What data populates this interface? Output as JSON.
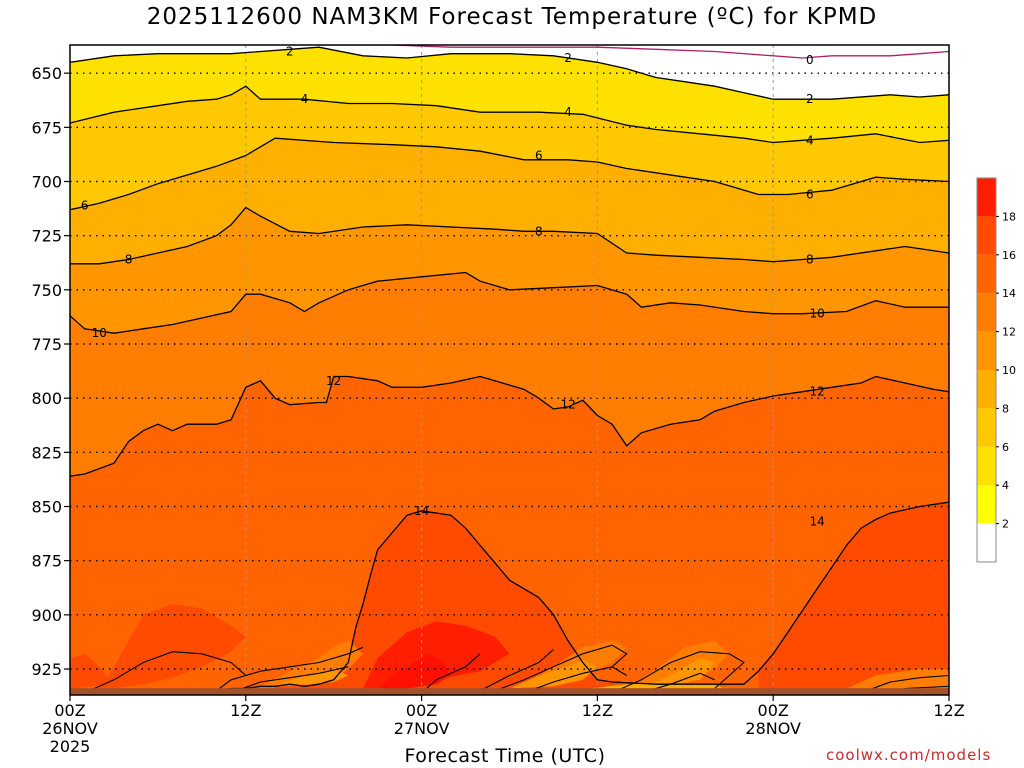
{
  "title": "2025112600 NAM3KM Forecast Temperature (ºC) for KPMD",
  "credit": "coolwx.com/models",
  "colors": {
    "c0": "#ffffff",
    "c2": "#ffff00",
    "c4": "#ffe100",
    "c6": "#ffc800",
    "c8": "#ffaf00",
    "c10": "#ff9600",
    "c12": "#ff7d00",
    "c14": "#ff6400",
    "c16": "#ff4b00",
    "c18": "#ff1e00",
    "ground": "#a0522d",
    "zero_line": "#b0206a"
  },
  "chart_data": {
    "type": "heatmap",
    "subtype": "time-height contour",
    "title": "2025112600 NAM3KM Forecast Temperature (ºC) for KPMD",
    "xlabel": "Forecast Time (UTC)",
    "ylabel": "",
    "xlim": [
      0,
      60
    ],
    "ylim": [
      637,
      937
    ],
    "y_inverted": true,
    "x_ticks": [
      {
        "hour": 0,
        "label": "00Z",
        "sub1": "26NOV",
        "sub2": "2025"
      },
      {
        "hour": 12,
        "label": "12Z",
        "sub1": "",
        "sub2": ""
      },
      {
        "hour": 24,
        "label": "00Z",
        "sub1": "27NOV",
        "sub2": ""
      },
      {
        "hour": 36,
        "label": "12Z",
        "sub1": "",
        "sub2": ""
      },
      {
        "hour": 48,
        "label": "00Z",
        "sub1": "28NOV",
        "sub2": ""
      },
      {
        "hour": 60,
        "label": "12Z",
        "sub1": "",
        "sub2": ""
      }
    ],
    "y_ticks": [
      650,
      675,
      700,
      725,
      750,
      775,
      800,
      825,
      850,
      875,
      900,
      925
    ],
    "surface_pressure": 932,
    "colorbar": {
      "levels": [
        2,
        4,
        6,
        8,
        10,
        12,
        14,
        16,
        18
      ],
      "colors": [
        "#ffffff",
        "#ffff00",
        "#ffe100",
        "#ffc800",
        "#ffaf00",
        "#ff9600",
        "#ff7d00",
        "#ff6400",
        "#ff4b00",
        "#ff1e00"
      ]
    },
    "contours": [
      {
        "level": 0,
        "label": "0",
        "points": [
          [
            17,
            637
          ],
          [
            22,
            637
          ],
          [
            26,
            638
          ],
          [
            30,
            638
          ],
          [
            36,
            638
          ],
          [
            40,
            639
          ],
          [
            44,
            640
          ],
          [
            48,
            642
          ],
          [
            50,
            643
          ],
          [
            52,
            642
          ],
          [
            56,
            642
          ],
          [
            58,
            641
          ],
          [
            60,
            640
          ]
        ],
        "labels_at": [
          [
            50.5,
            644
          ]
        ]
      },
      {
        "level": 2,
        "label": "2",
        "points": [
          [
            0,
            645
          ],
          [
            3,
            642
          ],
          [
            6,
            641
          ],
          [
            8,
            641
          ],
          [
            11,
            641
          ],
          [
            15,
            639
          ],
          [
            17,
            638
          ],
          [
            20,
            642
          ],
          [
            23,
            643
          ],
          [
            26,
            641
          ],
          [
            30,
            641
          ],
          [
            33,
            642
          ],
          [
            36,
            645
          ],
          [
            38,
            648
          ],
          [
            40,
            652
          ],
          [
            42,
            654
          ],
          [
            44,
            656
          ],
          [
            46,
            659
          ],
          [
            48,
            662
          ],
          [
            52,
            662
          ],
          [
            56,
            660
          ],
          [
            58,
            661
          ],
          [
            60,
            660
          ]
        ],
        "labels_at": [
          [
            15,
            640
          ],
          [
            34,
            643
          ],
          [
            50.5,
            662
          ]
        ]
      },
      {
        "level": 4,
        "label": "4",
        "points": [
          [
            0,
            673
          ],
          [
            3,
            668
          ],
          [
            6,
            665
          ],
          [
            8,
            663
          ],
          [
            10,
            662
          ],
          [
            11,
            660
          ],
          [
            12,
            656
          ],
          [
            13,
            662
          ],
          [
            16,
            662
          ],
          [
            19,
            664
          ],
          [
            22,
            664
          ],
          [
            25,
            665
          ],
          [
            28,
            668
          ],
          [
            32,
            668
          ],
          [
            35,
            669
          ],
          [
            38,
            674
          ],
          [
            40,
            676
          ],
          [
            43,
            678
          ],
          [
            46,
            680
          ],
          [
            48,
            682
          ],
          [
            50,
            681
          ],
          [
            52,
            680
          ],
          [
            55,
            678
          ],
          [
            58,
            682
          ],
          [
            60,
            681
          ]
        ],
        "labels_at": [
          [
            16,
            662
          ],
          [
            34,
            668
          ],
          [
            50.5,
            681
          ]
        ]
      },
      {
        "level": 6,
        "label": "6",
        "points": [
          [
            0,
            713
          ],
          [
            2,
            710
          ],
          [
            4,
            706
          ],
          [
            6,
            701
          ],
          [
            8,
            697
          ],
          [
            10,
            693
          ],
          [
            12,
            688
          ],
          [
            13,
            684
          ],
          [
            14,
            680
          ],
          [
            18,
            682
          ],
          [
            22,
            683
          ],
          [
            25,
            684
          ],
          [
            28,
            686
          ],
          [
            31,
            690
          ],
          [
            34,
            690
          ],
          [
            36,
            691
          ],
          [
            38,
            694
          ],
          [
            40,
            696
          ],
          [
            42,
            698
          ],
          [
            44,
            700
          ],
          [
            47,
            706
          ],
          [
            49,
            706
          ],
          [
            52,
            704
          ],
          [
            55,
            698
          ],
          [
            57,
            699
          ],
          [
            60,
            700
          ]
        ],
        "labels_at": [
          [
            1,
            711
          ],
          [
            32,
            688
          ],
          [
            50.5,
            706
          ]
        ]
      },
      {
        "level": 8,
        "label": "8",
        "points": [
          [
            0,
            738
          ],
          [
            2,
            738
          ],
          [
            4,
            736
          ],
          [
            6,
            733
          ],
          [
            8,
            730
          ],
          [
            10,
            725
          ],
          [
            11,
            720
          ],
          [
            12,
            712
          ],
          [
            13,
            716
          ],
          [
            15,
            723
          ],
          [
            17,
            724
          ],
          [
            20,
            721
          ],
          [
            23,
            720
          ],
          [
            26,
            721
          ],
          [
            29,
            722
          ],
          [
            31,
            723
          ],
          [
            33,
            723
          ],
          [
            36,
            724
          ],
          [
            38,
            733
          ],
          [
            40,
            734
          ],
          [
            43,
            735
          ],
          [
            46,
            736
          ],
          [
            48,
            737
          ],
          [
            50,
            736
          ],
          [
            52,
            735
          ],
          [
            55,
            732
          ],
          [
            57,
            730
          ],
          [
            60,
            733
          ]
        ],
        "labels_at": [
          [
            4,
            736
          ],
          [
            32,
            723
          ],
          [
            50.5,
            736
          ]
        ]
      },
      {
        "level": 10,
        "label": "10",
        "points": [
          [
            0,
            762
          ],
          [
            1,
            768
          ],
          [
            3,
            770
          ],
          [
            5,
            768
          ],
          [
            7,
            766
          ],
          [
            9,
            763
          ],
          [
            11,
            760
          ],
          [
            12,
            752
          ],
          [
            13,
            752
          ],
          [
            15,
            756
          ],
          [
            16,
            760
          ],
          [
            17,
            756
          ],
          [
            19,
            750
          ],
          [
            21,
            746
          ],
          [
            24,
            744
          ],
          [
            27,
            742
          ],
          [
            28,
            746
          ],
          [
            30,
            750
          ],
          [
            33,
            749
          ],
          [
            36,
            748
          ],
          [
            38,
            752
          ],
          [
            39,
            758
          ],
          [
            41,
            756
          ],
          [
            43,
            757
          ],
          [
            46,
            760
          ],
          [
            48,
            761
          ],
          [
            50,
            761
          ],
          [
            53,
            760
          ],
          [
            55,
            755
          ],
          [
            57,
            758
          ],
          [
            60,
            758
          ]
        ],
        "labels_at": [
          [
            2,
            770
          ],
          [
            51,
            761
          ]
        ]
      },
      {
        "level": 12,
        "label": "12",
        "points": [
          [
            0,
            836
          ],
          [
            1,
            835
          ],
          [
            3,
            830
          ],
          [
            4,
            820
          ],
          [
            5,
            815
          ],
          [
            6,
            812
          ],
          [
            7,
            815
          ],
          [
            8,
            812
          ],
          [
            10,
            812
          ],
          [
            11,
            810
          ],
          [
            12,
            795
          ],
          [
            13,
            792
          ],
          [
            14,
            800
          ],
          [
            15,
            803
          ],
          [
            17,
            802
          ],
          [
            17.5,
            802
          ],
          [
            18,
            790
          ],
          [
            19,
            790
          ],
          [
            21,
            792
          ],
          [
            22,
            795
          ],
          [
            24,
            795
          ],
          [
            26,
            793
          ],
          [
            28,
            790
          ],
          [
            29,
            792
          ],
          [
            31,
            796
          ],
          [
            32,
            800
          ],
          [
            33,
            805
          ],
          [
            34,
            804
          ],
          [
            35,
            801
          ],
          [
            36,
            808
          ],
          [
            37,
            812
          ],
          [
            38,
            822
          ],
          [
            39,
            816
          ],
          [
            41,
            812
          ],
          [
            43,
            810
          ],
          [
            44,
            806
          ],
          [
            46,
            802
          ],
          [
            48,
            799
          ],
          [
            50,
            797
          ],
          [
            52,
            795
          ],
          [
            54,
            793
          ],
          [
            55,
            790
          ],
          [
            57,
            793
          ],
          [
            59,
            796
          ],
          [
            60,
            797
          ]
        ],
        "labels_at": [
          [
            18,
            792
          ],
          [
            34,
            803
          ],
          [
            51,
            797
          ]
        ]
      },
      {
        "level": 14,
        "label": "14",
        "points": [
          [
            10,
            935
          ],
          [
            11,
            934
          ],
          [
            12,
            934
          ],
          [
            13,
            933
          ],
          [
            14,
            933
          ],
          [
            15,
            932
          ],
          [
            16,
            933
          ],
          [
            17,
            932
          ],
          [
            18,
            930
          ],
          [
            19,
            922
          ],
          [
            19.5,
            906
          ],
          [
            20,
            895
          ],
          [
            20.5,
            882
          ],
          [
            21,
            870
          ],
          [
            22,
            862
          ],
          [
            23,
            854
          ],
          [
            24,
            852
          ],
          [
            26,
            854
          ],
          [
            27,
            860
          ],
          [
            28,
            868
          ],
          [
            29,
            876
          ],
          [
            30,
            884
          ],
          [
            32,
            892
          ],
          [
            33,
            900
          ],
          [
            34,
            912
          ],
          [
            35,
            922
          ],
          [
            36,
            930
          ],
          [
            37,
            931
          ],
          [
            40,
            932
          ],
          [
            44,
            932
          ],
          [
            46,
            932
          ],
          [
            47,
            926
          ],
          [
            48,
            918
          ],
          [
            49,
            908
          ],
          [
            50,
            898
          ],
          [
            51,
            888
          ],
          [
            52,
            878
          ],
          [
            53,
            868
          ],
          [
            54,
            860
          ],
          [
            55,
            856
          ],
          [
            56,
            853
          ],
          [
            58,
            850
          ],
          [
            60,
            848
          ]
        ],
        "labels_at": [
          [
            24,
            852
          ],
          [
            51,
            857
          ]
        ]
      }
    ]
  }
}
